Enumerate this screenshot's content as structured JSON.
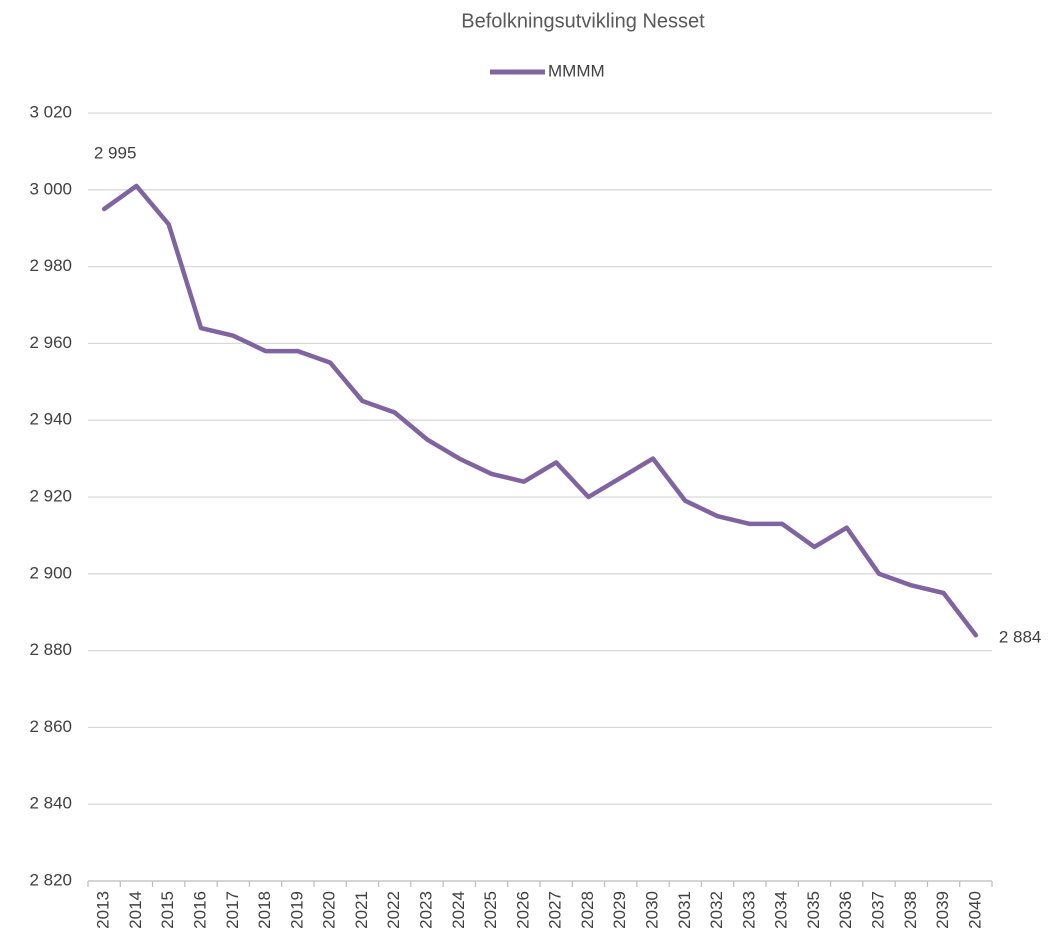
{
  "chart_data": {
    "type": "line",
    "title": "Befolkningsutvikling Nesset",
    "categories": [
      "2013",
      "2014",
      "2015",
      "2016",
      "2017",
      "2018",
      "2019",
      "2020",
      "2021",
      "2022",
      "2023",
      "2024",
      "2025",
      "2026",
      "2027",
      "2028",
      "2029",
      "2030",
      "2031",
      "2032",
      "2033",
      "2034",
      "2035",
      "2036",
      "2037",
      "2038",
      "2039",
      "2040"
    ],
    "series": [
      {
        "name": "MMMM",
        "color": "#8064a2",
        "values": [
          2995,
          3001,
          2991,
          2964,
          2962,
          2958,
          2958,
          2955,
          2945,
          2942,
          2935,
          2930,
          2926,
          2924,
          2929,
          2920,
          2925,
          2930,
          2919,
          2915,
          2913,
          2913,
          2907,
          2912,
          2900,
          2897,
          2895,
          2884
        ],
        "value_labels": [
          "2 995",
          null,
          null,
          null,
          null,
          null,
          null,
          null,
          null,
          null,
          null,
          null,
          null,
          null,
          null,
          null,
          null,
          null,
          null,
          null,
          null,
          null,
          null,
          null,
          null,
          null,
          null,
          "2 884"
        ]
      }
    ],
    "ylim": [
      2820,
      3020
    ],
    "yticks": [
      {
        "value": 2820,
        "label": "2 820"
      },
      {
        "value": 2840,
        "label": "2 840"
      },
      {
        "value": 2860,
        "label": "2 860"
      },
      {
        "value": 2880,
        "label": "2 880"
      },
      {
        "value": 2900,
        "label": "2 900"
      },
      {
        "value": 2920,
        "label": "2 920"
      },
      {
        "value": 2940,
        "label": "2 940"
      },
      {
        "value": 2960,
        "label": "2 960"
      },
      {
        "value": 2980,
        "label": "2 980"
      },
      {
        "value": 3000,
        "label": "3 000"
      },
      {
        "value": 3020,
        "label": "3 020"
      }
    ],
    "grid": true,
    "legend": "top"
  }
}
